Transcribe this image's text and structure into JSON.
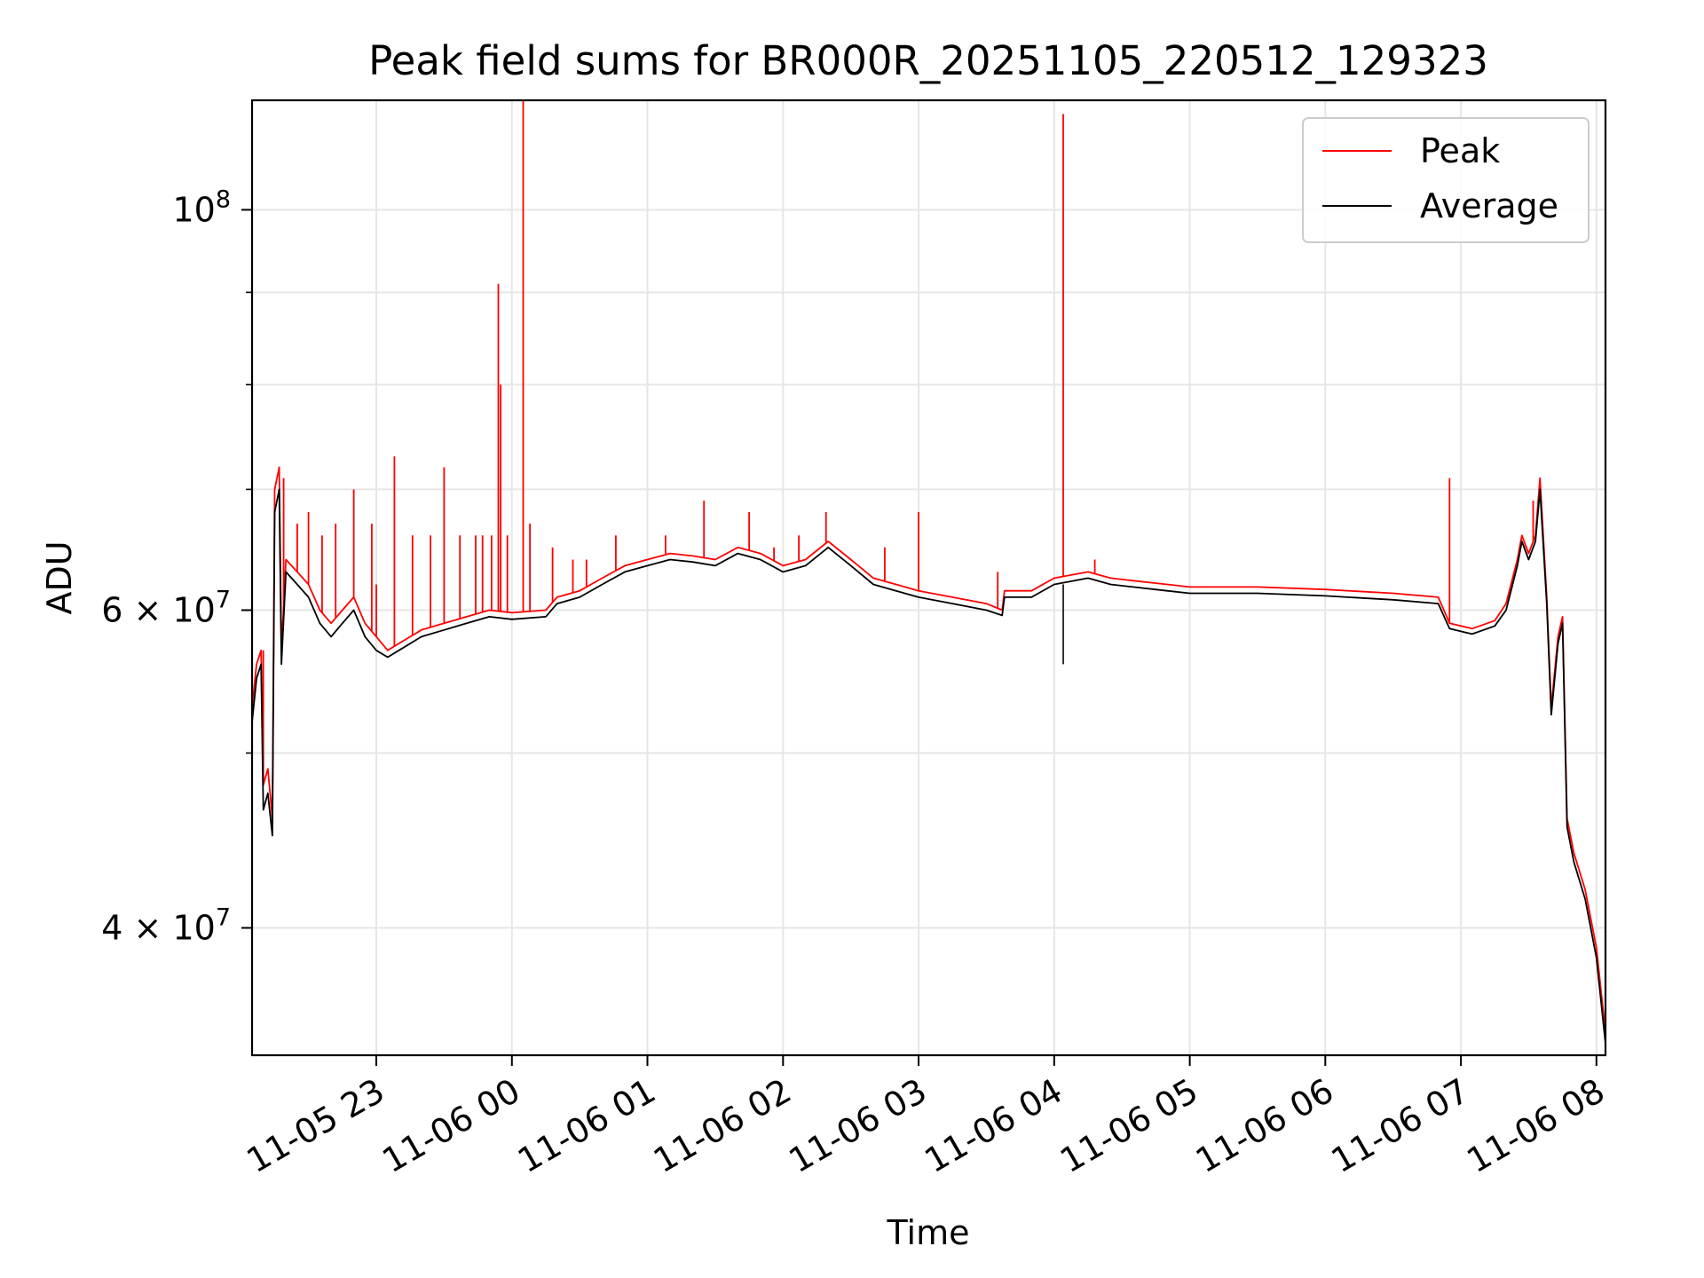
{
  "chart_data": {
    "type": "line",
    "title": "Peak field sums for BR000R_20251105_220512_129323",
    "xlabel": "Time",
    "ylabel": "ADU",
    "y_scale": "log",
    "grid": true,
    "legend_position": "top-right",
    "x_range": [
      "2025-11-05 22:05",
      "2025-11-06 08:04"
    ],
    "ylim": [
      34000000,
      115000000
    ],
    "x_ticks": [
      {
        "t": "2025-11-05 23:00",
        "label": "11-05 23"
      },
      {
        "t": "2025-11-06 00:00",
        "label": "11-06 00"
      },
      {
        "t": "2025-11-06 01:00",
        "label": "11-06 01"
      },
      {
        "t": "2025-11-06 02:00",
        "label": "11-06 02"
      },
      {
        "t": "2025-11-06 03:00",
        "label": "11-06 03"
      },
      {
        "t": "2025-11-06 04:00",
        "label": "11-06 04"
      },
      {
        "t": "2025-11-06 05:00",
        "label": "11-06 05"
      },
      {
        "t": "2025-11-06 06:00",
        "label": "11-06 06"
      },
      {
        "t": "2025-11-06 07:00",
        "label": "11-06 07"
      },
      {
        "t": "2025-11-06 08:00",
        "label": "11-06 08"
      }
    ],
    "y_ticks": [
      {
        "value": 40000000,
        "mantissa": "4",
        "exponent": "7"
      },
      {
        "value": 60000000,
        "mantissa": "6",
        "exponent": "7"
      },
      {
        "value": 100000000,
        "mantissa": "10",
        "exponent": "8"
      }
    ],
    "y_minor_ticks": [
      50000000,
      70000000,
      80000000,
      90000000
    ],
    "series": [
      {
        "name": "Peak",
        "color": "#ff0000",
        "points": [
          [
            "2025-11-05 22:05",
            53000000
          ],
          [
            "2025-11-05 22:07",
            56000000
          ],
          [
            "2025-11-05 22:09",
            57000000
          ],
          [
            "2025-11-05 22:10",
            48000000
          ],
          [
            "2025-11-05 22:12",
            49000000
          ],
          [
            "2025-11-05 22:14",
            46000000
          ],
          [
            "2025-11-05 22:15",
            70000000
          ],
          [
            "2025-11-05 22:17",
            72000000
          ],
          [
            "2025-11-05 22:18",
            57000000
          ],
          [
            "2025-11-05 22:20",
            64000000
          ],
          [
            "2025-11-05 22:25",
            63000000
          ],
          [
            "2025-11-05 22:30",
            62000000
          ],
          [
            "2025-11-05 22:35",
            60000000
          ],
          [
            "2025-11-05 22:40",
            59000000
          ],
          [
            "2025-11-05 22:45",
            60000000
          ],
          [
            "2025-11-05 22:50",
            61000000
          ],
          [
            "2025-11-05 22:55",
            59000000
          ],
          [
            "2025-11-05 23:00",
            58000000
          ],
          [
            "2025-11-05 23:05",
            57000000
          ],
          [
            "2025-11-05 23:10",
            57500000
          ],
          [
            "2025-11-05 23:20",
            58500000
          ],
          [
            "2025-11-05 23:30",
            59000000
          ],
          [
            "2025-11-05 23:40",
            59500000
          ],
          [
            "2025-11-05 23:50",
            60000000
          ],
          [
            "2025-11-06 00:00",
            59800000
          ],
          [
            "2025-11-06 00:15",
            60000000
          ],
          [
            "2025-11-06 00:20",
            61000000
          ],
          [
            "2025-11-06 00:30",
            61500000
          ],
          [
            "2025-11-06 00:40",
            62500000
          ],
          [
            "2025-11-06 00:50",
            63500000
          ],
          [
            "2025-11-06 01:00",
            64000000
          ],
          [
            "2025-11-06 01:10",
            64500000
          ],
          [
            "2025-11-06 01:20",
            64300000
          ],
          [
            "2025-11-06 01:30",
            64000000
          ],
          [
            "2025-11-06 01:40",
            65000000
          ],
          [
            "2025-11-06 01:50",
            64500000
          ],
          [
            "2025-11-06 02:00",
            63500000
          ],
          [
            "2025-11-06 02:10",
            64000000
          ],
          [
            "2025-11-06 02:20",
            65500000
          ],
          [
            "2025-11-06 02:30",
            64000000
          ],
          [
            "2025-11-06 02:40",
            62500000
          ],
          [
            "2025-11-06 02:50",
            62000000
          ],
          [
            "2025-11-06 03:00",
            61500000
          ],
          [
            "2025-11-06 03:15",
            61000000
          ],
          [
            "2025-11-06 03:30",
            60500000
          ],
          [
            "2025-11-06 03:37",
            60000000
          ],
          [
            "2025-11-06 03:38",
            61500000
          ],
          [
            "2025-11-06 03:50",
            61500000
          ],
          [
            "2025-11-06 04:00",
            62500000
          ],
          [
            "2025-11-06 04:15",
            63000000
          ],
          [
            "2025-11-06 04:25",
            62500000
          ],
          [
            "2025-11-06 04:35",
            62300000
          ],
          [
            "2025-11-06 04:50",
            62000000
          ],
          [
            "2025-11-06 05:00",
            61800000
          ],
          [
            "2025-11-06 05:30",
            61800000
          ],
          [
            "2025-11-06 06:00",
            61600000
          ],
          [
            "2025-11-06 06:30",
            61300000
          ],
          [
            "2025-11-06 06:50",
            61000000
          ],
          [
            "2025-11-06 06:55",
            59000000
          ],
          [
            "2025-11-06 07:05",
            58600000
          ],
          [
            "2025-11-06 07:15",
            59200000
          ],
          [
            "2025-11-06 07:20",
            60500000
          ],
          [
            "2025-11-06 07:25",
            64000000
          ],
          [
            "2025-11-06 07:27",
            66000000
          ],
          [
            "2025-11-06 07:30",
            64500000
          ],
          [
            "2025-11-06 07:33",
            66000000
          ],
          [
            "2025-11-06 07:35",
            71000000
          ],
          [
            "2025-11-06 07:38",
            61000000
          ],
          [
            "2025-11-06 07:40",
            53000000
          ],
          [
            "2025-11-06 07:43",
            58000000
          ],
          [
            "2025-11-06 07:45",
            59500000
          ],
          [
            "2025-11-06 07:47",
            46000000
          ],
          [
            "2025-11-06 07:50",
            44000000
          ],
          [
            "2025-11-06 07:55",
            42000000
          ],
          [
            "2025-11-06 08:00",
            39000000
          ],
          [
            "2025-11-06 08:04",
            35000000
          ]
        ]
      },
      {
        "name": "Average",
        "color": "#000000",
        "points": [
          [
            "2025-11-05 22:05",
            52000000
          ],
          [
            "2025-11-05 22:07",
            55000000
          ],
          [
            "2025-11-05 22:09",
            56000000
          ],
          [
            "2025-11-05 22:10",
            46500000
          ],
          [
            "2025-11-05 22:12",
            47500000
          ],
          [
            "2025-11-05 22:14",
            45000000
          ],
          [
            "2025-11-05 22:15",
            68000000
          ],
          [
            "2025-11-05 22:17",
            70000000
          ],
          [
            "2025-11-05 22:18",
            56000000
          ],
          [
            "2025-11-05 22:20",
            63000000
          ],
          [
            "2025-11-05 22:25",
            62000000
          ],
          [
            "2025-11-05 22:30",
            61000000
          ],
          [
            "2025-11-05 22:35",
            59000000
          ],
          [
            "2025-11-05 22:40",
            58000000
          ],
          [
            "2025-11-05 22:45",
            59000000
          ],
          [
            "2025-11-05 22:50",
            60000000
          ],
          [
            "2025-11-05 22:55",
            58000000
          ],
          [
            "2025-11-05 23:00",
            57000000
          ],
          [
            "2025-11-05 23:05",
            56500000
          ],
          [
            "2025-11-05 23:10",
            57000000
          ],
          [
            "2025-11-05 23:20",
            58000000
          ],
          [
            "2025-11-05 23:30",
            58500000
          ],
          [
            "2025-11-05 23:40",
            59000000
          ],
          [
            "2025-11-05 23:50",
            59500000
          ],
          [
            "2025-11-06 00:00",
            59300000
          ],
          [
            "2025-11-06 00:15",
            59500000
          ],
          [
            "2025-11-06 00:20",
            60500000
          ],
          [
            "2025-11-06 00:30",
            61000000
          ],
          [
            "2025-11-06 00:40",
            62000000
          ],
          [
            "2025-11-06 00:50",
            63000000
          ],
          [
            "2025-11-06 01:00",
            63500000
          ],
          [
            "2025-11-06 01:10",
            64000000
          ],
          [
            "2025-11-06 01:20",
            63800000
          ],
          [
            "2025-11-06 01:30",
            63500000
          ],
          [
            "2025-11-06 01:40",
            64500000
          ],
          [
            "2025-11-06 01:50",
            64000000
          ],
          [
            "2025-11-06 02:00",
            63000000
          ],
          [
            "2025-11-06 02:10",
            63500000
          ],
          [
            "2025-11-06 02:20",
            65000000
          ],
          [
            "2025-11-06 02:30",
            63500000
          ],
          [
            "2025-11-06 02:40",
            62000000
          ],
          [
            "2025-11-06 02:50",
            61500000
          ],
          [
            "2025-11-06 03:00",
            61000000
          ],
          [
            "2025-11-06 03:15",
            60500000
          ],
          [
            "2025-11-06 03:30",
            60000000
          ],
          [
            "2025-11-06 03:37",
            59600000
          ],
          [
            "2025-11-06 03:38",
            61000000
          ],
          [
            "2025-11-06 03:50",
            61000000
          ],
          [
            "2025-11-06 04:00",
            62000000
          ],
          [
            "2025-11-06 04:15",
            62500000
          ],
          [
            "2025-11-06 04:25",
            62000000
          ],
          [
            "2025-11-06 04:35",
            61800000
          ],
          [
            "2025-11-06 04:50",
            61500000
          ],
          [
            "2025-11-06 05:00",
            61300000
          ],
          [
            "2025-11-06 05:30",
            61300000
          ],
          [
            "2025-11-06 06:00",
            61100000
          ],
          [
            "2025-11-06 06:30",
            60800000
          ],
          [
            "2025-11-06 06:50",
            60500000
          ],
          [
            "2025-11-06 06:55",
            58600000
          ],
          [
            "2025-11-06 07:05",
            58200000
          ],
          [
            "2025-11-06 07:15",
            58800000
          ],
          [
            "2025-11-06 07:20",
            60000000
          ],
          [
            "2025-11-06 07:25",
            63500000
          ],
          [
            "2025-11-06 07:27",
            65500000
          ],
          [
            "2025-11-06 07:30",
            64000000
          ],
          [
            "2025-11-06 07:33",
            65500000
          ],
          [
            "2025-11-06 07:35",
            70000000
          ],
          [
            "2025-11-06 07:38",
            60500000
          ],
          [
            "2025-11-06 07:40",
            52500000
          ],
          [
            "2025-11-06 07:43",
            57500000
          ],
          [
            "2025-11-06 07:45",
            59000000
          ],
          [
            "2025-11-06 07:47",
            45500000
          ],
          [
            "2025-11-06 07:50",
            43500000
          ],
          [
            "2025-11-06 07:55",
            41500000
          ],
          [
            "2025-11-06 08:00",
            38500000
          ],
          [
            "2025-11-06 08:04",
            34500000
          ]
        ]
      }
    ],
    "peak_spikes": [
      [
        "2025-11-05 22:10",
        57000000
      ],
      [
        "2025-11-05 22:19",
        71000000
      ],
      [
        "2025-11-05 22:25",
        67000000
      ],
      [
        "2025-11-05 22:30",
        68000000
      ],
      [
        "2025-11-05 22:36",
        66000000
      ],
      [
        "2025-11-05 22:42",
        67000000
      ],
      [
        "2025-11-05 22:50",
        70000000
      ],
      [
        "2025-11-05 22:58",
        67000000
      ],
      [
        "2025-11-05 23:00",
        62000000
      ],
      [
        "2025-11-05 23:08",
        73000000
      ],
      [
        "2025-11-05 23:16",
        66000000
      ],
      [
        "2025-11-05 23:24",
        66000000
      ],
      [
        "2025-11-05 23:30",
        72000000
      ],
      [
        "2025-11-05 23:37",
        66000000
      ],
      [
        "2025-11-05 23:44",
        66000000
      ],
      [
        "2025-11-05 23:47",
        66000000
      ],
      [
        "2025-11-05 23:51",
        66000000
      ],
      [
        "2025-11-05 23:54",
        91000000
      ],
      [
        "2025-11-05 23:55",
        80000000
      ],
      [
        "2025-11-05 23:58",
        66000000
      ],
      [
        "2025-11-06 00:08",
        67000000
      ],
      [
        "2025-11-06 00:18",
        65000000
      ],
      [
        "2025-11-06 00:27",
        64000000
      ],
      [
        "2025-11-06 00:33",
        64000000
      ],
      [
        "2025-11-06 00:46",
        66000000
      ],
      [
        "2025-11-06 01:08",
        66000000
      ],
      [
        "2025-11-06 01:25",
        69000000
      ],
      [
        "2025-11-06 01:45",
        68000000
      ],
      [
        "2025-11-06 01:56",
        65000000
      ],
      [
        "2025-11-06 02:07",
        66000000
      ],
      [
        "2025-11-06 02:19",
        68000000
      ],
      [
        "2025-11-06 02:45",
        65000000
      ],
      [
        "2025-11-06 03:00",
        68000000
      ],
      [
        "2025-11-06 03:35",
        63000000
      ],
      [
        "2025-11-06 04:18",
        64000000
      ],
      [
        "2025-11-06 06:55",
        71000000
      ],
      [
        "2025-11-06 07:32",
        69000000
      ]
    ],
    "tall_spikes": [
      [
        "2025-11-06 00:05",
        120000000
      ],
      [
        "2025-11-06 04:04",
        113000000
      ]
    ],
    "avg_dips": [
      [
        "2025-11-06 04:04",
        56000000
      ]
    ]
  }
}
